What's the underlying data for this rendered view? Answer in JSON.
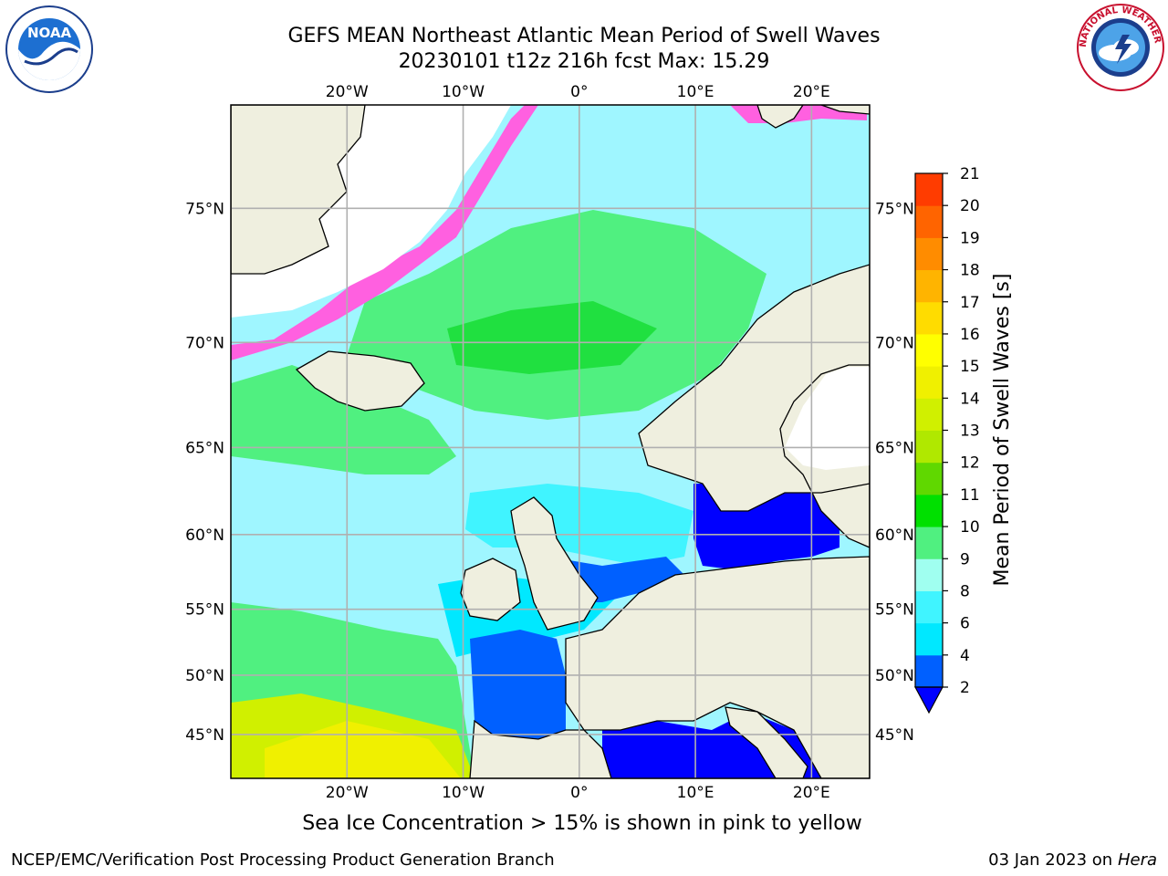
{
  "header": {
    "title_line1": "GEFS MEAN Northeast Atlantic Mean Period of Swell Waves",
    "title_line2": "20230101 t12z 216h fcst   Max: 15.29"
  },
  "logos": {
    "left": {
      "icon": "noaa-logo-icon",
      "text": "NOAA"
    },
    "right": {
      "icon": "nws-logo-icon",
      "text": "NATIONAL WEATHER SERVICE"
    }
  },
  "map": {
    "lon_range": [
      -30,
      25
    ],
    "lat_range": [
      41,
      78
    ],
    "lon_ticks": [
      {
        "lon": -20,
        "label": "20°W"
      },
      {
        "lon": -10,
        "label": "10°W"
      },
      {
        "lon": 0,
        "label": "0°"
      },
      {
        "lon": 10,
        "label": "10°E"
      },
      {
        "lon": 20,
        "label": "20°E"
      }
    ],
    "lat_ticks": [
      {
        "lat": 45,
        "label": "45°N"
      },
      {
        "lat": 50,
        "label": "50°N"
      },
      {
        "lat": 55,
        "label": "55°N"
      },
      {
        "lat": 60,
        "label": "60°N"
      },
      {
        "lat": 65,
        "label": "65°N"
      },
      {
        "lat": 70,
        "label": "70°N"
      },
      {
        "lat": 75,
        "label": "75°N"
      }
    ],
    "grid": true
  },
  "colorbar": {
    "label": "Mean Period of Swell Waves [s]",
    "ticks": [
      "2",
      "4",
      "6",
      "8",
      "9",
      "10",
      "11",
      "12",
      "13",
      "14",
      "15",
      "16",
      "17",
      "18",
      "19",
      "20",
      "21"
    ],
    "colors": [
      "#0060ff",
      "#00e8ff",
      "#40f4ff",
      "#a0fff0",
      "#50f080",
      "#00e000",
      "#60d800",
      "#b0e800",
      "#d0f000",
      "#f0f000",
      "#ffff00",
      "#ffdc00",
      "#ffb400",
      "#ff8c00",
      "#ff6400",
      "#ff3c00",
      "#ff0000"
    ],
    "extend_color": "#0000ff"
  },
  "note": "Sea Ice Concentration > 15% is shown in pink to yellow",
  "footer": {
    "left": "NCEP/EMC/Verification Post Processing Product Generation Branch",
    "right_date": "03 Jan 2023 on ",
    "right_host": "Hera"
  }
}
